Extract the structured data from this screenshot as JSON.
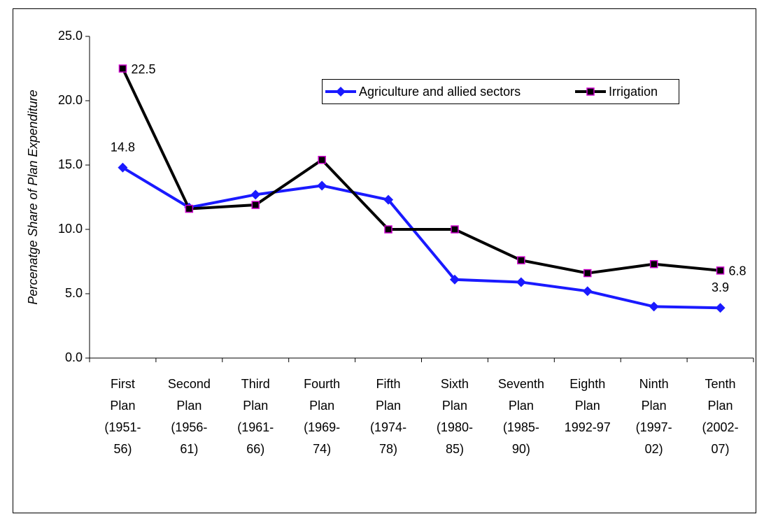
{
  "chart_data": {
    "type": "line",
    "y_label": "Percenatge Share of Plan Expenditure",
    "categories": [
      [
        "First",
        "Plan",
        "(1951-",
        "56)"
      ],
      [
        "Second",
        "Plan",
        "(1956-",
        "61)"
      ],
      [
        "Third",
        "Plan",
        "(1961-",
        "66)"
      ],
      [
        "Fourth",
        "Plan",
        "(1969-",
        "74)"
      ],
      [
        "Fifth",
        "Plan",
        "(1974-",
        "78)"
      ],
      [
        "Sixth",
        "Plan",
        "(1980-",
        "85)"
      ],
      [
        "Seventh",
        "Plan",
        "(1985-",
        "90)"
      ],
      [
        "Eighth",
        "Plan",
        "1992-97"
      ],
      [
        "Ninth",
        "Plan",
        "(1997-",
        "02)"
      ],
      [
        "Tenth",
        "Plan",
        "(2002-",
        "07)"
      ]
    ],
    "series": [
      {
        "name": "Agriculture and allied sectors",
        "color": "#1a1aff",
        "marker": "diamond",
        "values": [
          14.8,
          11.7,
          12.7,
          13.4,
          12.3,
          6.1,
          5.9,
          5.2,
          4.0,
          3.9
        ],
        "value_labels": [
          "14.8",
          null,
          null,
          null,
          null,
          null,
          null,
          null,
          null,
          "3.9"
        ]
      },
      {
        "name": "Irrigation",
        "color": "#000000",
        "marker": "square",
        "marker_edge": "#cc00cc",
        "values": [
          22.5,
          11.6,
          11.9,
          15.4,
          10.0,
          10.0,
          7.6,
          6.6,
          7.3,
          6.8
        ],
        "value_labels": [
          "22.5",
          null,
          null,
          null,
          null,
          null,
          null,
          null,
          null,
          "6.8"
        ]
      }
    ],
    "ylim": [
      0,
      25
    ],
    "yticks": [
      {
        "value": 0,
        "label": "0.0"
      },
      {
        "value": 5,
        "label": "5.0"
      },
      {
        "value": 10,
        "label": "10.0"
      },
      {
        "value": 15,
        "label": "15.0"
      },
      {
        "value": 20,
        "label": "20.0"
      },
      {
        "value": 25,
        "label": "25.0"
      }
    ],
    "legend": "top-right"
  }
}
